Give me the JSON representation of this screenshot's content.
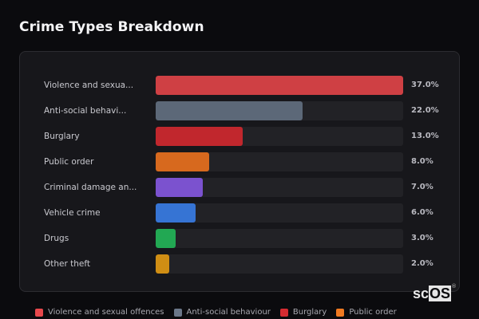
{
  "title": "Crime Types Breakdown",
  "chart_data": {
    "type": "bar",
    "orientation": "horizontal",
    "title": "Crime Types Breakdown",
    "unit": "%",
    "categories": [
      "Violence and sexual offences",
      "Anti-social behaviour",
      "Burglary",
      "Public order",
      "Criminal damage and arson",
      "Vehicle crime",
      "Drugs",
      "Other theft"
    ],
    "display_labels": [
      "Violence and sexua...",
      "Anti-social behavi...",
      "Burglary",
      "Public order",
      "Criminal damage an...",
      "Vehicle crime",
      "Drugs",
      "Other theft"
    ],
    "values": [
      37.0,
      22.0,
      13.0,
      8.0,
      7.0,
      6.0,
      3.0,
      2.0
    ],
    "value_labels": [
      "37.0%",
      "22.0%",
      "13.0%",
      "8.0%",
      "7.0%",
      "6.0%",
      "3.0%",
      "2.0%"
    ],
    "colors": [
      "#cf4044",
      "#5c6878",
      "#c1272d",
      "#d7691e",
      "#7b52cf",
      "#3674d4",
      "#22a853",
      "#d08e14"
    ],
    "max_value": 37.0,
    "grid": false,
    "legend_position": "bottom"
  },
  "legend": [
    {
      "label": "Violence and sexual offences",
      "color": "#e8484c"
    },
    {
      "label": "Anti-social behaviour",
      "color": "#6b7789"
    },
    {
      "label": "Burglary",
      "color": "#d62b31"
    },
    {
      "label": "Public order",
      "color": "#f07a21"
    }
  ],
  "logo": {
    "sc": "sc",
    "os": "OS",
    "reg": "®"
  }
}
